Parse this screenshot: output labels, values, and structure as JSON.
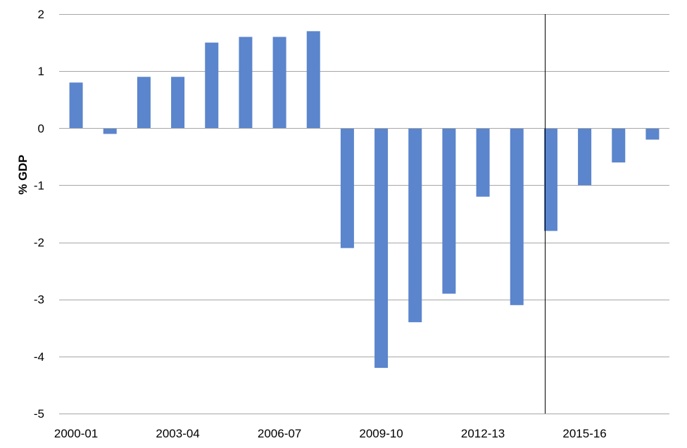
{
  "chart_data": {
    "type": "bar",
    "title": "",
    "xlabel": "",
    "ylabel": "% GDP",
    "ylim": [
      -5,
      2
    ],
    "yticks": [
      2,
      1,
      0,
      -1,
      -2,
      -3,
      -4,
      -5
    ],
    "y_tick_labels": [
      "2",
      "1",
      "0",
      "-1",
      "-2",
      "-3",
      "-4",
      "-5"
    ],
    "grid": "horizontal",
    "legend": "none",
    "bar_color": "#5b85cc",
    "categories": [
      "2000-01",
      "2001-02",
      "2002-03",
      "2003-04",
      "2004-05",
      "2005-06",
      "2006-07",
      "2007-08",
      "2008-09",
      "2009-10",
      "2010-11",
      "2011-12",
      "2012-13",
      "2013-14",
      "2014-15",
      "2015-16",
      "2016-17",
      "2017-18"
    ],
    "x_tick_labels": [
      "2000-01",
      "",
      "",
      "2003-04",
      "",
      "",
      "2006-07",
      "",
      "",
      "2009-10",
      "",
      "",
      "2012-13",
      "",
      "",
      "2015-16",
      "",
      ""
    ],
    "values": [
      0.8,
      -0.1,
      0.9,
      0.9,
      1.5,
      1.6,
      1.6,
      1.7,
      -2.1,
      -4.2,
      -3.4,
      -2.9,
      -1.2,
      -3.1,
      -1.8,
      -1.0,
      -0.6,
      -0.2
    ],
    "forecast_divider_after": "2014-15"
  }
}
